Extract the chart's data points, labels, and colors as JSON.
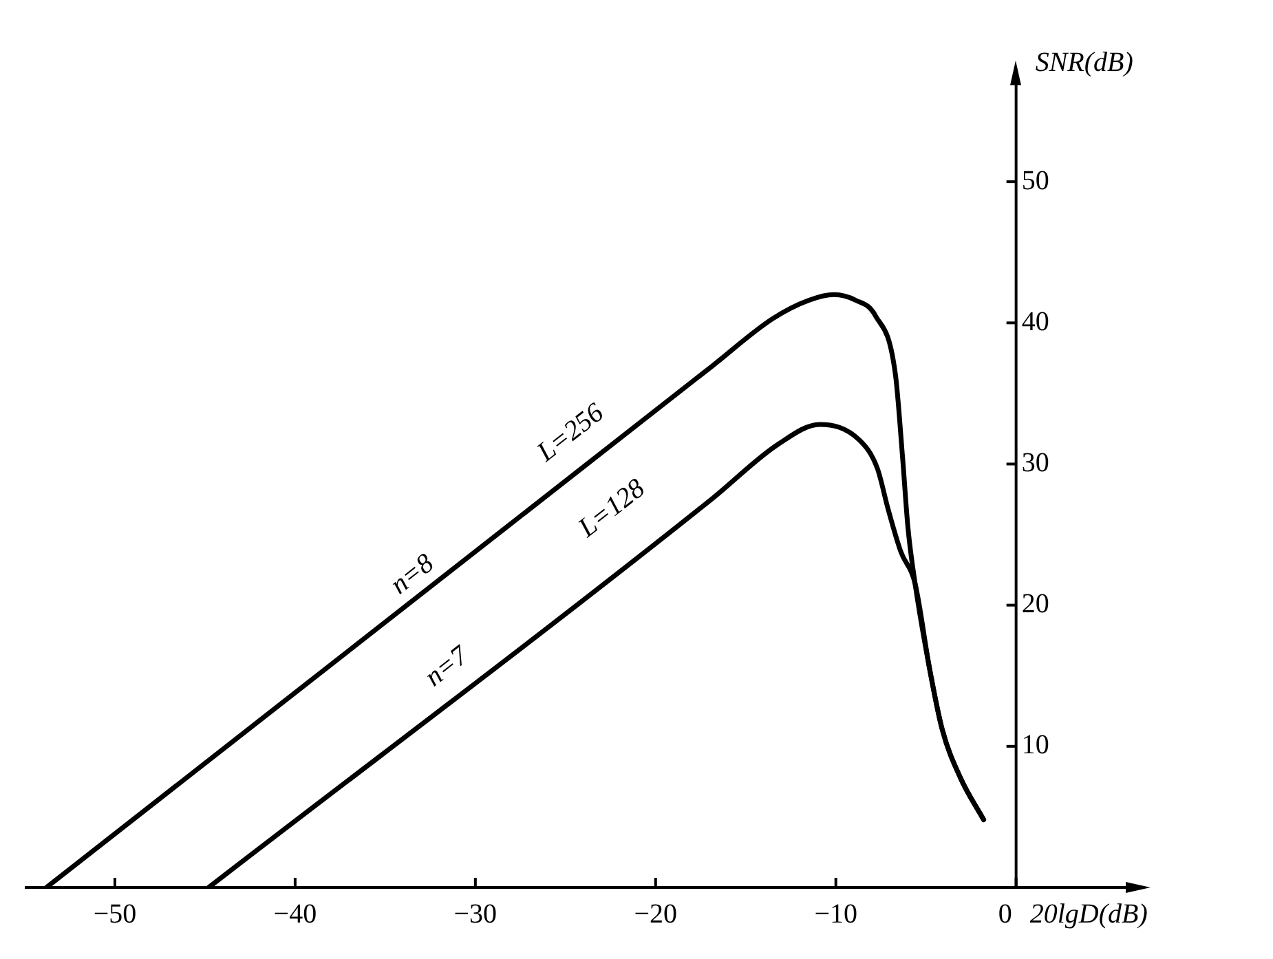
{
  "chart_data": {
    "type": "line",
    "xlabel": "20lgD(dB)",
    "ylabel": "SNR(dB)",
    "xlim": [
      -55,
      7
    ],
    "ylim": [
      0,
      58
    ],
    "xticks": [
      {
        "value": -50,
        "label": "−50"
      },
      {
        "value": -40,
        "label": "−40"
      },
      {
        "value": -30,
        "label": "−30"
      },
      {
        "value": -20,
        "label": "−20"
      },
      {
        "value": -10,
        "label": "−10"
      },
      0
    ],
    "yticks": [
      10,
      20,
      30,
      40,
      50
    ],
    "grid": false,
    "legend": false,
    "marker": "none",
    "line_style": "solid",
    "series": [
      {
        "color": "#000000",
        "x": [
          -53.8,
          -16.9,
          -13.5,
          -11.5,
          -10.1,
          -8.9,
          -7.8,
          -6.7,
          -6.3,
          -6.0,
          -5.6,
          -4.8,
          -4.1,
          -3.1,
          -1.8
        ],
        "values": [
          0,
          36.9,
          40.3,
          41.6,
          42,
          41.6,
          40.5,
          36.4,
          30.5,
          25.5,
          21.5,
          15.5,
          11.2,
          7.8,
          4.8
        ]
      },
      {
        "color": "#000000",
        "x": [
          -44.8,
          -16.9,
          -13.2,
          -10.9,
          -8.7,
          -7.7,
          -7.1,
          -6.4,
          -5.6,
          -4.8,
          -4.1,
          -3.1,
          -1.8
        ],
        "values": [
          0,
          27.5,
          31.4,
          32.8,
          31.7,
          29.7,
          26.8,
          23.8,
          21.5,
          15.5,
          11.2,
          7.8,
          4.8
        ]
      }
    ],
    "annotations": [
      "n=8",
      "L=256",
      "n=7",
      "L=128"
    ]
  }
}
